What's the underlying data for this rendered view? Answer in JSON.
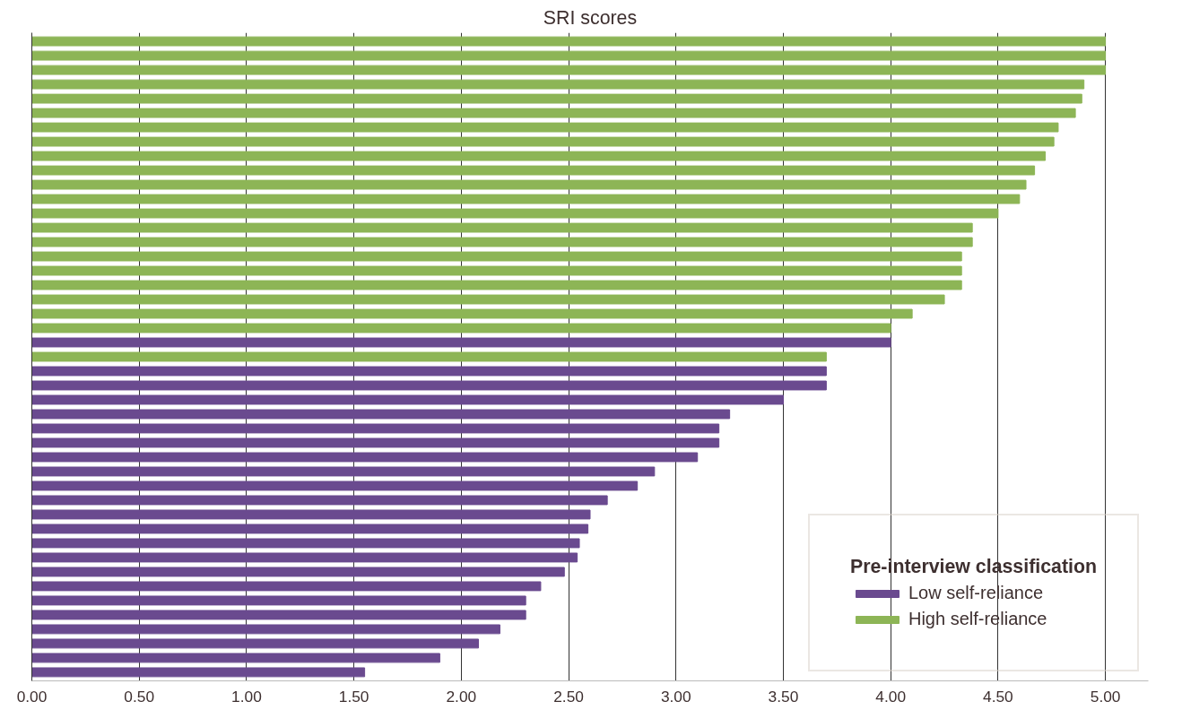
{
  "chart_data": {
    "type": "bar",
    "orientation": "horizontal",
    "title": "SRI scores",
    "legend_title": "Pre-interview classification",
    "categories": [
      null,
      null,
      null,
      null,
      null,
      null,
      null,
      null,
      null,
      null,
      null,
      null,
      null,
      null,
      null,
      null,
      null,
      null,
      null,
      null,
      null,
      null,
      null,
      null,
      null,
      null,
      null,
      null,
      null,
      null,
      null,
      null,
      null,
      null,
      null,
      null,
      null,
      null,
      null,
      null,
      null,
      null,
      null,
      null,
      null
    ],
    "series": [
      {
        "name": "Low self-reliance",
        "color": "#6a4a8f",
        "values": [
          null,
          null,
          null,
          null,
          null,
          null,
          null,
          null,
          null,
          null,
          null,
          null,
          null,
          null,
          null,
          null,
          null,
          null,
          null,
          null,
          null,
          4.0,
          null,
          3.7,
          3.7,
          3.5,
          3.25,
          3.2,
          3.2,
          3.1,
          2.9,
          2.82,
          2.68,
          2.6,
          2.59,
          2.55,
          2.54,
          2.48,
          2.37,
          2.3,
          2.3,
          2.18,
          2.08,
          1.9,
          1.55
        ]
      },
      {
        "name": "High self-reliance",
        "color": "#8db556",
        "values": [
          5.0,
          5.0,
          5.0,
          4.9,
          4.89,
          4.86,
          4.78,
          4.76,
          4.72,
          4.67,
          4.63,
          4.6,
          4.5,
          4.38,
          4.38,
          4.33,
          4.33,
          4.33,
          4.25,
          4.1,
          4.0,
          null,
          3.7,
          null,
          null,
          null,
          null,
          null,
          null,
          null,
          null,
          null,
          null,
          null,
          null,
          null,
          null,
          null,
          null,
          null,
          null,
          null,
          null,
          null,
          null
        ]
      }
    ],
    "xlim": [
      0,
      5.2
    ],
    "xticks": [
      {
        "value": 0,
        "label": "0.00"
      },
      {
        "value": 0.5,
        "label": "0.50"
      },
      {
        "value": 1,
        "label": "1.00"
      },
      {
        "value": 1.5,
        "label": "1.50"
      },
      {
        "value": 2,
        "label": "2.00"
      },
      {
        "value": 2.5,
        "label": "2.50"
      },
      {
        "value": 3,
        "label": "3.00"
      },
      {
        "value": 3.5,
        "label": "3.50"
      },
      {
        "value": 4,
        "label": "4.00"
      },
      {
        "value": 4.5,
        "label": "4.50"
      },
      {
        "value": 5,
        "label": "5.00"
      }
    ],
    "grid": "x",
    "legend": "bottom right",
    "tick_labels": "x"
  }
}
